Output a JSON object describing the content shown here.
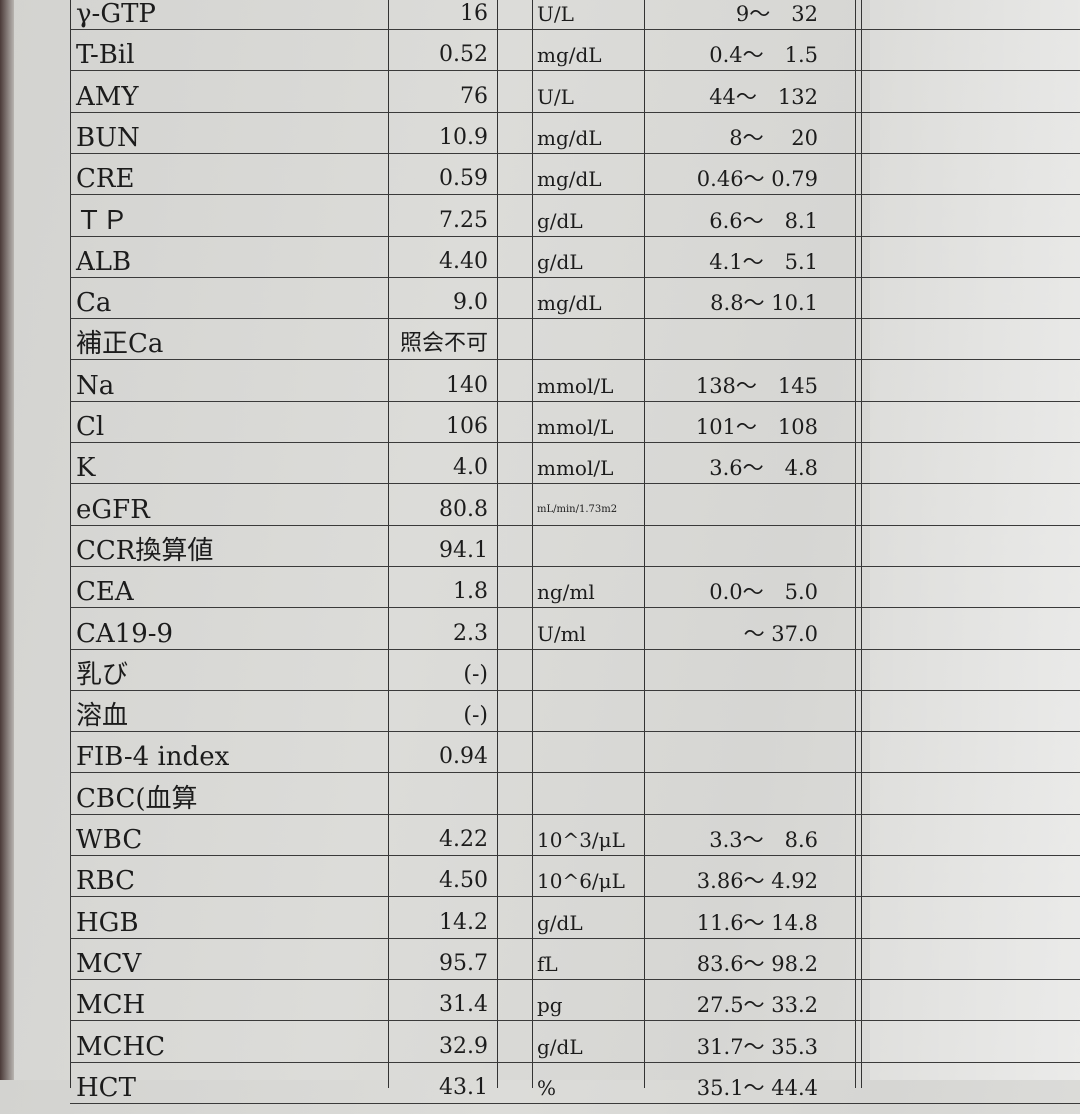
{
  "rows": [
    {
      "name": "γ-GTP",
      "value": "16",
      "unit": "U/L",
      "range": "9～　32"
    },
    {
      "name": "T-Bil",
      "value": "0.52",
      "unit": "mg/dL",
      "range": "0.4～　1.5"
    },
    {
      "name": "AMY",
      "value": "76",
      "unit": "U/L",
      "range": "44～　132"
    },
    {
      "name": "BUN",
      "value": "10.9",
      "unit": "mg/dL",
      "range": "8～　 20"
    },
    {
      "name": "CRE",
      "value": "0.59",
      "unit": "mg/dL",
      "range": "0.46～ 0.79"
    },
    {
      "name": "ＴＰ",
      "value": "7.25",
      "unit": "g/dL",
      "range": "6.6～　8.1"
    },
    {
      "name": "ALB",
      "value": "4.40",
      "unit": "g/dL",
      "range": "4.1～　5.1"
    },
    {
      "name": "Ca",
      "value": "9.0",
      "unit": "mg/dL",
      "range": "8.8～ 10.1"
    },
    {
      "name": "補正Ca",
      "value": "照会不可",
      "unit": "",
      "range": ""
    },
    {
      "name": "Na",
      "value": "140",
      "unit": "mmol/L",
      "range": "138～　145"
    },
    {
      "name": "Cl",
      "value": "106",
      "unit": "mmol/L",
      "range": "101～　108"
    },
    {
      "name": "K",
      "value": "4.0",
      "unit": "mmol/L",
      "range": "3.6～　4.8"
    },
    {
      "name": "eGFR",
      "value": "80.8",
      "unit": "mL/min/1.73m2",
      "range": ""
    },
    {
      "name": "CCR換算値",
      "value": "94.1",
      "unit": "",
      "range": ""
    },
    {
      "name": "CEA",
      "value": "1.8",
      "unit": "ng/ml",
      "range": "0.0～　5.0"
    },
    {
      "name": "CA19-9",
      "value": "2.3",
      "unit": "U/ml",
      "range": "～ 37.0"
    },
    {
      "name": "乳び",
      "value": "(-)",
      "unit": "",
      "range": ""
    },
    {
      "name": "溶血",
      "value": "(-)",
      "unit": "",
      "range": ""
    },
    {
      "name": "FIB-4 index",
      "value": "0.94",
      "unit": "",
      "range": ""
    },
    {
      "name": "CBC(血算",
      "value": "",
      "unit": "",
      "range": ""
    },
    {
      "name": "WBC",
      "value": "4.22",
      "unit": "10^3/μL",
      "range": "3.3～　8.6"
    },
    {
      "name": "RBC",
      "value": "4.50",
      "unit": "10^6/μL",
      "range": "3.86～ 4.92"
    },
    {
      "name": "HGB",
      "value": "14.2",
      "unit": "g/dL",
      "range": "11.6～ 14.8"
    },
    {
      "name": "MCV",
      "value": "95.7",
      "unit": "fL",
      "range": "83.6～ 98.2"
    },
    {
      "name": "MCH",
      "value": "31.4",
      "unit": "pg",
      "range": "27.5～ 33.2"
    },
    {
      "name": "MCHC",
      "value": "32.9",
      "unit": "g/dL",
      "range": "31.7～ 35.3"
    },
    {
      "name": "HCT",
      "value": "43.1",
      "unit": "%",
      "range": "35.1～ 44.4"
    }
  ]
}
